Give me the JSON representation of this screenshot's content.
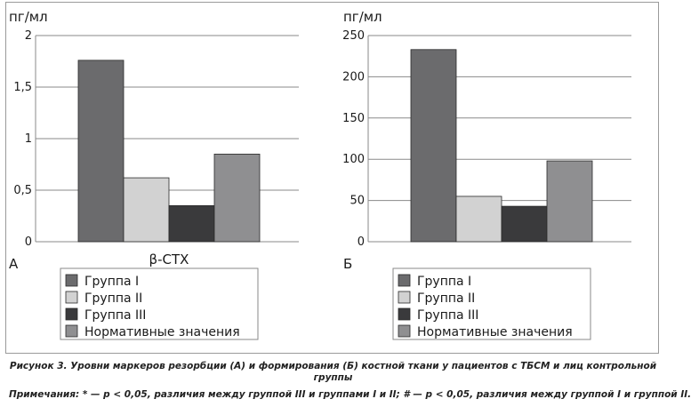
{
  "charts": [
    {
      "panel_label": "А",
      "unit": "пг/мл",
      "xlabel": "β-СТХ",
      "ylim": [
        0,
        2
      ],
      "yticks": [
        "0",
        "0,5",
        "1",
        "1,5",
        "2"
      ],
      "colors": [
        "#6b6b6d",
        "#d2d2d2",
        "#3a3a3c",
        "#8f8f91"
      ],
      "legend": [
        "Группа I",
        "Группа II",
        "Группа III",
        "Нормативные значения"
      ]
    },
    {
      "panel_label": "Б",
      "unit": "пг/мл",
      "xlabel": "",
      "ylim": [
        0,
        250
      ],
      "yticks": [
        "0",
        "50",
        "100",
        "150",
        "200",
        "250"
      ],
      "colors": [
        "#6b6b6d",
        "#d2d2d2",
        "#3a3a3c",
        "#8f8f91"
      ],
      "legend": [
        "Группа I",
        "Группа II",
        "Группа III",
        "Нормативные значения"
      ]
    }
  ],
  "chart_data": [
    {
      "type": "bar",
      "title": "",
      "xlabel": "β-СТХ",
      "ylabel": "пг/мл",
      "ylim": [
        0,
        2
      ],
      "grid": true,
      "legend_position": "bottom",
      "series": [
        {
          "name": "Группа I",
          "values": [
            1.76
          ]
        },
        {
          "name": "Группа II",
          "values": [
            0.62
          ]
        },
        {
          "name": "Группа III",
          "values": [
            0.35
          ]
        },
        {
          "name": "Нормативные значения",
          "values": [
            0.85
          ]
        }
      ]
    },
    {
      "type": "bar",
      "title": "",
      "xlabel": "",
      "ylabel": "пг/мл",
      "ylim": [
        0,
        250
      ],
      "grid": true,
      "legend_position": "bottom",
      "series": [
        {
          "name": "Группа I",
          "values": [
            233
          ]
        },
        {
          "name": "Группа II",
          "values": [
            55
          ]
        },
        {
          "name": "Группа III",
          "values": [
            43
          ]
        },
        {
          "name": "Нормативные значения",
          "values": [
            98
          ]
        }
      ]
    }
  ],
  "caption": "Рисунок 3. Уровни маркеров резорбции (А) и формирования (Б) костной ткани у пациентов с ТБСМ и лиц контрольной группы",
  "notes": "Примечания: * — p < 0,05, различия между группой III и группами I и II; # — p < 0,05, различия между группой I и группой II."
}
